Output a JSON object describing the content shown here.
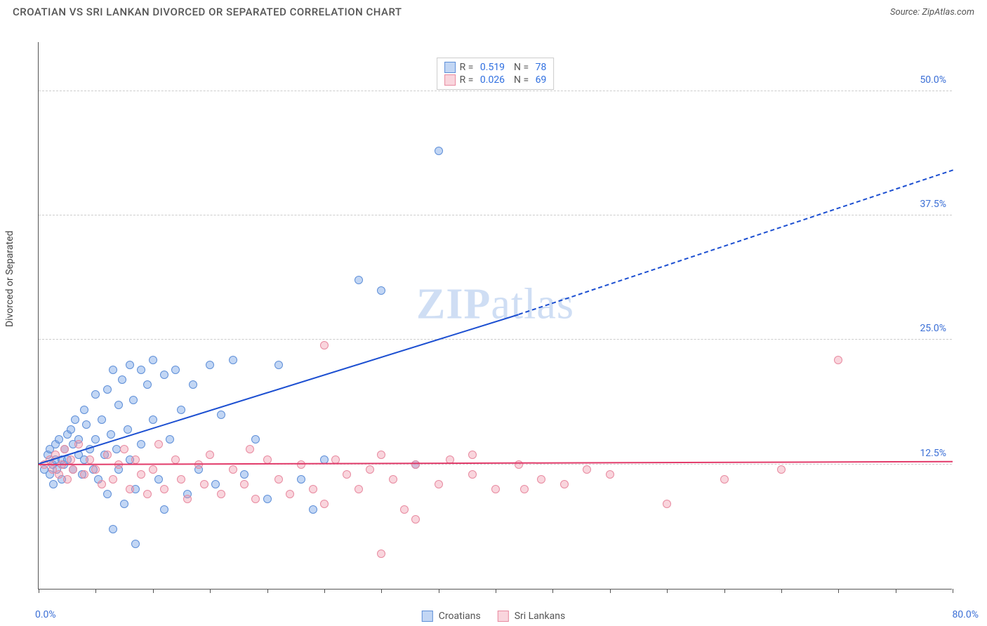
{
  "title": "CROATIAN VS SRI LANKAN DIVORCED OR SEPARATED CORRELATION CHART",
  "source_prefix": "Source: ",
  "source_link": "ZipAtlas.com",
  "y_axis_label": "Divorced or Separated",
  "watermark_bold": "ZIP",
  "watermark_rest": "atlas",
  "chart": {
    "type": "scatter",
    "xlim": [
      0,
      80
    ],
    "ylim": [
      0,
      55
    ],
    "x_origin_label": "0.0%",
    "x_max_label": "80.0%",
    "y_ticks": [
      {
        "v": 12.5,
        "label": "12.5%"
      },
      {
        "v": 25.0,
        "label": "25.0%"
      },
      {
        "v": 37.5,
        "label": "37.5%"
      },
      {
        "v": 50.0,
        "label": "50.0%"
      }
    ],
    "x_tick_positions": [
      0,
      5,
      10,
      15,
      20,
      25,
      30,
      35,
      40,
      45,
      50,
      55,
      60,
      65,
      70,
      75,
      80
    ],
    "grid_color": "#cccccc",
    "axis_color": "#555555",
    "background_color": "#ffffff",
    "marker_radius": 6,
    "marker_stroke_width": 1.2,
    "series": [
      {
        "name": "Croatians",
        "fill": "rgba(120,165,230,0.45)",
        "stroke": "#5e8fd8",
        "R": "0.519",
        "N": "78",
        "trend": {
          "color": "#1c4fd1",
          "x1": 0,
          "y1": 12.5,
          "solid_x2": 42,
          "solid_y2": 27.5,
          "dash_x2": 80,
          "dash_y2": 42
        },
        "points": [
          [
            0.5,
            12.0
          ],
          [
            0.8,
            13.5
          ],
          [
            1.0,
            11.5
          ],
          [
            1.0,
            14.0
          ],
          [
            1.2,
            12.5
          ],
          [
            1.3,
            10.5
          ],
          [
            1.5,
            13.0
          ],
          [
            1.5,
            14.5
          ],
          [
            1.6,
            12.0
          ],
          [
            1.8,
            15.0
          ],
          [
            2.0,
            13.0
          ],
          [
            2.0,
            11.0
          ],
          [
            2.2,
            12.5
          ],
          [
            2.3,
            14.0
          ],
          [
            2.5,
            15.5
          ],
          [
            2.5,
            13.0
          ],
          [
            2.8,
            16.0
          ],
          [
            3.0,
            12.0
          ],
          [
            3.0,
            14.5
          ],
          [
            3.2,
            17.0
          ],
          [
            3.5,
            13.5
          ],
          [
            3.5,
            15.0
          ],
          [
            3.8,
            11.5
          ],
          [
            4.0,
            18.0
          ],
          [
            4.0,
            13.0
          ],
          [
            4.2,
            16.5
          ],
          [
            4.5,
            14.0
          ],
          [
            4.8,
            12.0
          ],
          [
            5.0,
            19.5
          ],
          [
            5.0,
            15.0
          ],
          [
            5.2,
            11.0
          ],
          [
            5.5,
            17.0
          ],
          [
            5.8,
            13.5
          ],
          [
            6.0,
            20.0
          ],
          [
            6.0,
            9.5
          ],
          [
            6.3,
            15.5
          ],
          [
            6.5,
            22.0
          ],
          [
            6.8,
            14.0
          ],
          [
            7.0,
            18.5
          ],
          [
            7.0,
            12.0
          ],
          [
            7.3,
            21.0
          ],
          [
            7.5,
            8.5
          ],
          [
            7.8,
            16.0
          ],
          [
            8.0,
            22.5
          ],
          [
            8.0,
            13.0
          ],
          [
            8.3,
            19.0
          ],
          [
            8.5,
            10.0
          ],
          [
            9.0,
            22.0
          ],
          [
            9.0,
            14.5
          ],
          [
            9.5,
            20.5
          ],
          [
            10.0,
            17.0
          ],
          [
            10.0,
            23.0
          ],
          [
            10.5,
            11.0
          ],
          [
            11.0,
            21.5
          ],
          [
            11.0,
            8.0
          ],
          [
            11.5,
            15.0
          ],
          [
            12.0,
            22.0
          ],
          [
            12.5,
            18.0
          ],
          [
            13.0,
            9.5
          ],
          [
            13.5,
            20.5
          ],
          [
            14.0,
            12.0
          ],
          [
            15.0,
            22.5
          ],
          [
            15.5,
            10.5
          ],
          [
            16.0,
            17.5
          ],
          [
            17.0,
            23.0
          ],
          [
            18.0,
            11.5
          ],
          [
            19.0,
            15.0
          ],
          [
            20.0,
            9.0
          ],
          [
            21.0,
            22.5
          ],
          [
            23.0,
            11.0
          ],
          [
            24.0,
            8.0
          ],
          [
            25.0,
            13.0
          ],
          [
            28.0,
            31.0
          ],
          [
            30.0,
            30.0
          ],
          [
            33.0,
            12.5
          ],
          [
            35.0,
            44.0
          ],
          [
            8.5,
            4.5
          ],
          [
            6.5,
            6.0
          ]
        ]
      },
      {
        "name": "Sri Lankans",
        "fill": "rgba(240,150,170,0.40)",
        "stroke": "#e88aa0",
        "R": "0.026",
        "N": "69",
        "trend": {
          "color": "#e23b6a",
          "x1": 0,
          "y1": 12.4,
          "solid_x2": 80,
          "solid_y2": 12.7,
          "dash_x2": 80,
          "dash_y2": 12.7
        },
        "points": [
          [
            0.5,
            12.5
          ],
          [
            1.0,
            13.0
          ],
          [
            1.2,
            12.0
          ],
          [
            1.5,
            13.5
          ],
          [
            1.8,
            11.5
          ],
          [
            2.0,
            12.5
          ],
          [
            2.3,
            14.0
          ],
          [
            2.5,
            11.0
          ],
          [
            2.8,
            13.0
          ],
          [
            3.0,
            12.0
          ],
          [
            3.5,
            14.5
          ],
          [
            4.0,
            11.5
          ],
          [
            4.5,
            13.0
          ],
          [
            5.0,
            12.0
          ],
          [
            5.5,
            10.5
          ],
          [
            6.0,
            13.5
          ],
          [
            6.5,
            11.0
          ],
          [
            7.0,
            12.5
          ],
          [
            7.5,
            14.0
          ],
          [
            8.0,
            10.0
          ],
          [
            8.5,
            13.0
          ],
          [
            9.0,
            11.5
          ],
          [
            9.5,
            9.5
          ],
          [
            10.0,
            12.0
          ],
          [
            10.5,
            14.5
          ],
          [
            11.0,
            10.0
          ],
          [
            12.0,
            13.0
          ],
          [
            12.5,
            11.0
          ],
          [
            13.0,
            9.0
          ],
          [
            14.0,
            12.5
          ],
          [
            14.5,
            10.5
          ],
          [
            15.0,
            13.5
          ],
          [
            16.0,
            9.5
          ],
          [
            17.0,
            12.0
          ],
          [
            18.0,
            10.5
          ],
          [
            18.5,
            14.0
          ],
          [
            19.0,
            9.0
          ],
          [
            20.0,
            13.0
          ],
          [
            21.0,
            11.0
          ],
          [
            22.0,
            9.5
          ],
          [
            23.0,
            12.5
          ],
          [
            24.0,
            10.0
          ],
          [
            25.0,
            8.5
          ],
          [
            26.0,
            13.0
          ],
          [
            27.0,
            11.5
          ],
          [
            28.0,
            10.0
          ],
          [
            29.0,
            12.0
          ],
          [
            30.0,
            13.5
          ],
          [
            31.0,
            11.0
          ],
          [
            32.0,
            8.0
          ],
          [
            33.0,
            12.5
          ],
          [
            35.0,
            10.5
          ],
          [
            36.0,
            13.0
          ],
          [
            38.0,
            11.5
          ],
          [
            40.0,
            10.0
          ],
          [
            42.0,
            12.5
          ],
          [
            44.0,
            11.0
          ],
          [
            46.0,
            10.5
          ],
          [
            48.0,
            12.0
          ],
          [
            50.0,
            11.5
          ],
          [
            55.0,
            8.5
          ],
          [
            60.0,
            11.0
          ],
          [
            65.0,
            12.0
          ],
          [
            70.0,
            23.0
          ],
          [
            30.0,
            3.5
          ],
          [
            25.0,
            24.5
          ],
          [
            33.0,
            7.0
          ],
          [
            38.0,
            13.5
          ],
          [
            42.5,
            10.0
          ]
        ]
      }
    ]
  },
  "legend_bottom": [
    {
      "name": "Croatians",
      "fill": "rgba(120,165,230,0.45)",
      "stroke": "#5e8fd8"
    },
    {
      "name": "Sri Lankans",
      "fill": "rgba(240,150,170,0.40)",
      "stroke": "#e88aa0"
    }
  ]
}
